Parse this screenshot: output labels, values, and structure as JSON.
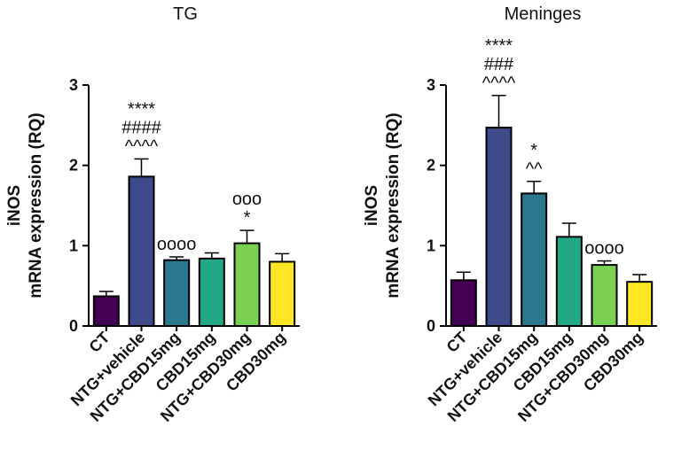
{
  "chart_data": [
    {
      "type": "bar",
      "title": "TG",
      "ylabel": [
        "iNOS",
        "mRNA expression (RQ)"
      ],
      "categories": [
        "CT",
        "NTG+vehicle",
        "NTG+CBD15mg",
        "CBD15mg",
        "NTG+CBD30mg",
        "CBD30mg"
      ],
      "values": [
        0.37,
        1.86,
        0.82,
        0.84,
        1.03,
        0.8
      ],
      "errors": [
        0.06,
        0.22,
        0.04,
        0.07,
        0.16,
        0.1
      ],
      "colors": [
        "#440154",
        "#3e4a89",
        "#2a788e",
        "#22a884",
        "#7ad151",
        "#fde725"
      ],
      "annotations": [
        [],
        [
          "****",
          "####",
          "^^^^"
        ],
        [
          "oooo"
        ],
        [],
        [
          "ooo",
          "*"
        ],
        []
      ],
      "ylim": [
        0,
        3
      ],
      "yticks": [
        0,
        1,
        2,
        3
      ]
    },
    {
      "type": "bar",
      "title": "Meninges",
      "ylabel": [
        "iNOS",
        "mRNA expression (RQ)"
      ],
      "categories": [
        "CT",
        "NTG+vehicle",
        "NTG+CBD15mg",
        "CBD15mg",
        "NTG+CBD30mg",
        "CBD30mg"
      ],
      "values": [
        0.57,
        2.47,
        1.65,
        1.11,
        0.76,
        0.55
      ],
      "errors": [
        0.1,
        0.4,
        0.15,
        0.17,
        0.05,
        0.09
      ],
      "colors": [
        "#440154",
        "#3e4a89",
        "#2a788e",
        "#22a884",
        "#7ad151",
        "#fde725"
      ],
      "annotations": [
        [],
        [
          "****",
          "###",
          "^^^^"
        ],
        [
          "*",
          "^^"
        ],
        [],
        [
          "oooo"
        ],
        []
      ],
      "ylim": [
        0,
        3
      ],
      "yticks": [
        0,
        1,
        2,
        3
      ]
    }
  ]
}
